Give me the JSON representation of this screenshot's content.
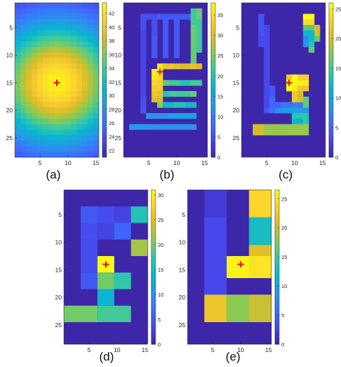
{
  "chart_data": [
    {
      "type": "heatmap",
      "panel": "(a)",
      "x_ticks": [
        5,
        10,
        15
      ],
      "y_ticks": [
        5,
        10,
        15,
        20,
        25
      ],
      "colorbar_ticks": [
        22,
        24,
        26,
        28,
        30,
        32,
        34,
        36,
        38,
        40,
        42
      ],
      "color_range": [
        21,
        43.5
      ],
      "marker": {
        "x": 8,
        "y": 15
      },
      "field": {
        "type": "radial",
        "center_x": 8,
        "center_y": 15,
        "peak": 43,
        "base": 21.5,
        "spread": 11
      }
    },
    {
      "type": "heatmap",
      "panel": "(b)",
      "x_ticks": [
        5,
        10,
        15
      ],
      "y_ticks": [
        5,
        10,
        15,
        20,
        25
      ],
      "colorbar_ticks": [
        0,
        5,
        10,
        15,
        20,
        25,
        30,
        35
      ],
      "color_range": [
        0,
        38
      ],
      "marker": {
        "x": 7,
        "y": 13
      },
      "cells": [
        [
          4,
          3,
          5
        ],
        [
          5,
          3,
          5
        ],
        [
          6,
          3,
          5
        ],
        [
          7,
          3,
          6
        ],
        [
          8,
          3,
          6
        ],
        [
          9,
          3,
          6
        ],
        [
          10,
          3,
          6
        ],
        [
          11,
          3,
          6
        ],
        [
          12,
          3,
          6
        ],
        [
          13,
          3,
          6
        ],
        [
          4,
          4,
          5
        ],
        [
          4,
          5,
          5
        ],
        [
          4,
          6,
          4
        ],
        [
          4,
          7,
          4
        ],
        [
          4,
          8,
          4
        ],
        [
          4,
          9,
          4
        ],
        [
          4,
          10,
          4
        ],
        [
          4,
          11,
          4
        ],
        [
          4,
          12,
          4
        ],
        [
          4,
          13,
          4
        ],
        [
          4,
          14,
          4
        ],
        [
          4,
          15,
          4
        ],
        [
          4,
          16,
          4
        ],
        [
          4,
          17,
          4
        ],
        [
          4,
          18,
          5
        ],
        [
          4,
          19,
          5
        ],
        [
          4,
          20,
          6
        ],
        [
          6,
          4,
          5
        ],
        [
          6,
          5,
          5
        ],
        [
          6,
          6,
          5
        ],
        [
          6,
          7,
          6
        ],
        [
          6,
          8,
          6
        ],
        [
          6,
          9,
          6
        ],
        [
          6,
          10,
          6
        ],
        [
          8,
          4,
          6
        ],
        [
          8,
          5,
          6
        ],
        [
          8,
          6,
          6
        ],
        [
          8,
          7,
          6
        ],
        [
          8,
          8,
          6
        ],
        [
          8,
          9,
          6
        ],
        [
          8,
          10,
          6
        ],
        [
          10,
          3,
          6
        ],
        [
          10,
          4,
          6
        ],
        [
          10,
          5,
          6
        ],
        [
          10,
          6,
          6
        ],
        [
          10,
          7,
          6
        ],
        [
          10,
          8,
          6
        ],
        [
          10,
          9,
          6
        ],
        [
          10,
          10,
          6
        ],
        [
          13,
          2,
          22
        ],
        [
          13,
          3,
          22
        ],
        [
          13,
          4,
          22
        ],
        [
          13,
          5,
          24
        ],
        [
          13,
          6,
          24
        ],
        [
          13,
          7,
          24
        ],
        [
          13,
          8,
          24
        ],
        [
          13,
          9,
          24
        ],
        [
          13,
          10,
          24
        ],
        [
          13,
          11,
          24
        ],
        [
          14,
          2,
          24
        ],
        [
          14,
          3,
          24
        ],
        [
          14,
          4,
          22
        ],
        [
          14,
          5,
          22
        ],
        [
          14,
          6,
          22
        ],
        [
          14,
          7,
          22
        ],
        [
          14,
          8,
          22
        ],
        [
          14,
          9,
          22
        ],
        [
          7,
          12,
          36
        ],
        [
          7,
          13,
          38
        ],
        [
          7,
          14,
          35
        ],
        [
          7,
          15,
          33
        ],
        [
          7,
          16,
          33
        ],
        [
          7,
          17,
          31
        ],
        [
          7,
          18,
          29
        ],
        [
          7,
          19,
          26
        ],
        [
          8,
          12,
          32
        ],
        [
          9,
          12,
          32
        ],
        [
          10,
          12,
          31
        ],
        [
          11,
          12,
          30
        ],
        [
          12,
          12,
          30
        ],
        [
          13,
          12,
          31
        ],
        [
          14,
          12,
          30
        ],
        [
          6,
          13,
          37
        ],
        [
          6,
          14,
          36
        ],
        [
          6,
          15,
          34
        ],
        [
          6,
          16,
          33
        ],
        [
          6,
          17,
          32
        ],
        [
          6,
          18,
          30
        ],
        [
          8,
          15,
          24
        ],
        [
          9,
          15,
          22
        ],
        [
          10,
          15,
          22
        ],
        [
          11,
          15,
          20
        ],
        [
          12,
          15,
          20
        ],
        [
          13,
          15,
          22
        ],
        [
          14,
          15,
          22
        ],
        [
          8,
          17,
          20
        ],
        [
          9,
          17,
          22
        ],
        [
          10,
          17,
          22
        ],
        [
          11,
          17,
          22
        ],
        [
          12,
          17,
          22
        ],
        [
          13,
          17,
          24
        ],
        [
          8,
          19,
          18
        ],
        [
          9,
          19,
          18
        ],
        [
          10,
          19,
          20
        ],
        [
          11,
          19,
          20
        ],
        [
          12,
          19,
          18
        ],
        [
          13,
          19,
          18
        ],
        [
          5,
          21,
          12
        ],
        [
          6,
          21,
          12
        ],
        [
          7,
          21,
          12
        ],
        [
          8,
          21,
          12
        ],
        [
          9,
          21,
          14
        ],
        [
          10,
          21,
          14
        ],
        [
          11,
          21,
          14
        ],
        [
          12,
          21,
          14
        ],
        [
          13,
          21,
          14
        ],
        [
          2,
          23,
          13
        ],
        [
          3,
          23,
          13
        ],
        [
          4,
          23,
          13
        ],
        [
          5,
          23,
          13
        ],
        [
          6,
          23,
          12
        ],
        [
          7,
          23,
          12
        ],
        [
          8,
          23,
          12
        ],
        [
          9,
          23,
          12
        ],
        [
          10,
          23,
          12
        ],
        [
          11,
          23,
          12
        ],
        [
          12,
          23,
          12
        ],
        [
          13,
          23,
          12
        ]
      ]
    },
    {
      "type": "heatmap",
      "panel": "(c)",
      "x_ticks": [
        5,
        10,
        15
      ],
      "y_ticks": [
        5,
        10,
        15,
        20,
        25
      ],
      "colorbar_ticks": [
        0,
        5,
        10,
        15,
        20,
        25
      ],
      "color_range": [
        0,
        26
      ],
      "marker": {
        "x": 9,
        "y": 15
      },
      "cells": [
        [
          4,
          3,
          4
        ],
        [
          4,
          4,
          4
        ],
        [
          4,
          5,
          4
        ],
        [
          4,
          6,
          4
        ],
        [
          4,
          7,
          3
        ],
        [
          4,
          8,
          3
        ],
        [
          5,
          5,
          3
        ],
        [
          5,
          6,
          3
        ],
        [
          5,
          7,
          3
        ],
        [
          5,
          8,
          3
        ],
        [
          5,
          9,
          3
        ],
        [
          5,
          10,
          3
        ],
        [
          5,
          11,
          3
        ],
        [
          5,
          12,
          3
        ],
        [
          5,
          13,
          3
        ],
        [
          5,
          14,
          3
        ],
        [
          5,
          15,
          3
        ],
        [
          5,
          16,
          3
        ],
        [
          5,
          17,
          3
        ],
        [
          5,
          18,
          3
        ],
        [
          5,
          19,
          3
        ],
        [
          5,
          20,
          4
        ],
        [
          6,
          16,
          4
        ],
        [
          6,
          17,
          4
        ],
        [
          6,
          18,
          5
        ],
        [
          6,
          19,
          5
        ],
        [
          6,
          20,
          6
        ],
        [
          7,
          20,
          8
        ],
        [
          8,
          20,
          9
        ],
        [
          9,
          20,
          10
        ],
        [
          10,
          20,
          10
        ],
        [
          11,
          20,
          9
        ],
        [
          12,
          20,
          9
        ],
        [
          7,
          19,
          5
        ],
        [
          8,
          19,
          6
        ],
        [
          9,
          19,
          6
        ],
        [
          10,
          19,
          7
        ],
        [
          11,
          19,
          7
        ],
        [
          12,
          19,
          7
        ],
        [
          12,
          3,
          26
        ],
        [
          13,
          3,
          26
        ],
        [
          12,
          4,
          24
        ],
        [
          13,
          4,
          24
        ],
        [
          12,
          5,
          16
        ],
        [
          13,
          5,
          16
        ],
        [
          14,
          5,
          20
        ],
        [
          14,
          6,
          20
        ],
        [
          12,
          6,
          12
        ],
        [
          13,
          6,
          12
        ],
        [
          12,
          7,
          8
        ],
        [
          13,
          7,
          12
        ],
        [
          14,
          7,
          16
        ],
        [
          12,
          8,
          8
        ],
        [
          13,
          8,
          14
        ],
        [
          13,
          9,
          16
        ],
        [
          9,
          14,
          22
        ],
        [
          9,
          15,
          26
        ],
        [
          9,
          16,
          26
        ],
        [
          10,
          14,
          26
        ],
        [
          10,
          15,
          26
        ],
        [
          10,
          16,
          25
        ],
        [
          11,
          14,
          23
        ],
        [
          11,
          15,
          25
        ],
        [
          11,
          16,
          22
        ],
        [
          12,
          14,
          23
        ],
        [
          12,
          15,
          25
        ],
        [
          12,
          16,
          22
        ],
        [
          10,
          17,
          22
        ],
        [
          10,
          18,
          22
        ],
        [
          11,
          17,
          20
        ],
        [
          11,
          18,
          20
        ],
        [
          12,
          18,
          16
        ],
        [
          12,
          19,
          16
        ],
        [
          10,
          21,
          14
        ],
        [
          11,
          21,
          14
        ],
        [
          10,
          22,
          12
        ],
        [
          11,
          22,
          12
        ],
        [
          12,
          21,
          14
        ],
        [
          12,
          22,
          14
        ],
        [
          3,
          23,
          20
        ],
        [
          4,
          23,
          20
        ],
        [
          5,
          23,
          18
        ],
        [
          6,
          23,
          18
        ],
        [
          7,
          23,
          18
        ],
        [
          8,
          23,
          18
        ],
        [
          9,
          23,
          18
        ],
        [
          10,
          23,
          18
        ],
        [
          11,
          23,
          18
        ],
        [
          12,
          23,
          18
        ],
        [
          3,
          24,
          20
        ],
        [
          4,
          24,
          20
        ],
        [
          5,
          24,
          18
        ],
        [
          6,
          24,
          18
        ],
        [
          7,
          24,
          18
        ],
        [
          8,
          24,
          18
        ],
        [
          9,
          24,
          18
        ],
        [
          10,
          24,
          18
        ],
        [
          11,
          24,
          18
        ],
        [
          12,
          24,
          18
        ]
      ]
    },
    {
      "type": "heatmap",
      "panel": "(d)",
      "x_ticks": [
        5,
        10,
        15
      ],
      "y_ticks": [
        5,
        10,
        15,
        20,
        25
      ],
      "colorbar_ticks": [
        0,
        5,
        10,
        15,
        20,
        25,
        30
      ],
      "color_range": [
        0,
        31
      ],
      "marker": {
        "x": 8,
        "y": 14
      },
      "blocks": [
        {
          "x0": 4,
          "x1": 6,
          "y0": 4,
          "y1": 6,
          "v": 5
        },
        {
          "x0": 7,
          "x1": 9,
          "y0": 4,
          "y1": 6,
          "v": 4
        },
        {
          "x0": 10,
          "x1": 12,
          "y0": 4,
          "y1": 6,
          "v": 3
        },
        {
          "x0": 13,
          "x1": 15,
          "y0": 4,
          "y1": 6,
          "v": 16
        },
        {
          "x0": 4,
          "x1": 6,
          "y0": 7,
          "y1": 9,
          "v": 4
        },
        {
          "x0": 7,
          "x1": 9,
          "y0": 7,
          "y1": 9,
          "v": 3
        },
        {
          "x0": 10,
          "x1": 12,
          "y0": 7,
          "y1": 9,
          "v": 6
        },
        {
          "x0": 13,
          "x1": 15,
          "y0": 10,
          "y1": 12,
          "v": 22
        },
        {
          "x0": 4,
          "x1": 6,
          "y0": 10,
          "y1": 12,
          "v": 4
        },
        {
          "x0": 4,
          "x1": 6,
          "y0": 13,
          "y1": 15,
          "v": 4
        },
        {
          "x0": 7,
          "x1": 9,
          "y0": 13,
          "y1": 15,
          "v": 31
        },
        {
          "x0": 4,
          "x1": 6,
          "y0": 16,
          "y1": 18,
          "v": 5
        },
        {
          "x0": 7,
          "x1": 9,
          "y0": 16,
          "y1": 18,
          "v": 20
        },
        {
          "x0": 10,
          "x1": 12,
          "y0": 16,
          "y1": 18,
          "v": 17
        },
        {
          "x0": 7,
          "x1": 9,
          "y0": 19,
          "y1": 21,
          "v": 14
        },
        {
          "x0": 1,
          "x1": 6,
          "y0": 22,
          "y1": 24,
          "v": 20
        },
        {
          "x0": 7,
          "x1": 12,
          "y0": 22,
          "y1": 24,
          "v": 18
        }
      ]
    },
    {
      "type": "heatmap",
      "panel": "(e)",
      "x_ticks": [
        5,
        10,
        15
      ],
      "y_ticks": [
        5,
        10,
        15,
        20,
        25
      ],
      "colorbar_ticks": [
        0,
        5,
        10,
        15,
        20,
        25
      ],
      "color_range": [
        0,
        26.5
      ],
      "marker": {
        "x": 10,
        "y": 14
      },
      "blocks": [
        {
          "x0": 4,
          "x1": 7,
          "y0": 1,
          "y1": 5,
          "v": 2
        },
        {
          "x0": 4,
          "x1": 7,
          "y0": 6,
          "y1": 10,
          "v": 3
        },
        {
          "x0": 4,
          "x1": 7,
          "y0": 11,
          "y1": 14,
          "v": 3
        },
        {
          "x0": 4,
          "x1": 7,
          "y0": 15,
          "y1": 19,
          "v": 3
        },
        {
          "x0": 4,
          "x1": 7,
          "y0": 20,
          "y1": 24,
          "v": 22
        },
        {
          "x0": 12,
          "x1": 15,
          "y0": 1,
          "y1": 5,
          "v": 24
        },
        {
          "x0": 12,
          "x1": 15,
          "y0": 6,
          "y1": 10,
          "v": 13
        },
        {
          "x0": 12,
          "x1": 15,
          "y0": 11,
          "y1": 14,
          "v": 21
        },
        {
          "x0": 8,
          "x1": 11,
          "y0": 13,
          "y1": 16,
          "v": 26
        },
        {
          "x0": 12,
          "x1": 15,
          "y0": 13,
          "y1": 16,
          "v": 25
        },
        {
          "x0": 8,
          "x1": 11,
          "y0": 20,
          "y1": 24,
          "v": 18
        },
        {
          "x0": 12,
          "x1": 15,
          "y0": 20,
          "y1": 24,
          "v": 20
        }
      ]
    }
  ]
}
